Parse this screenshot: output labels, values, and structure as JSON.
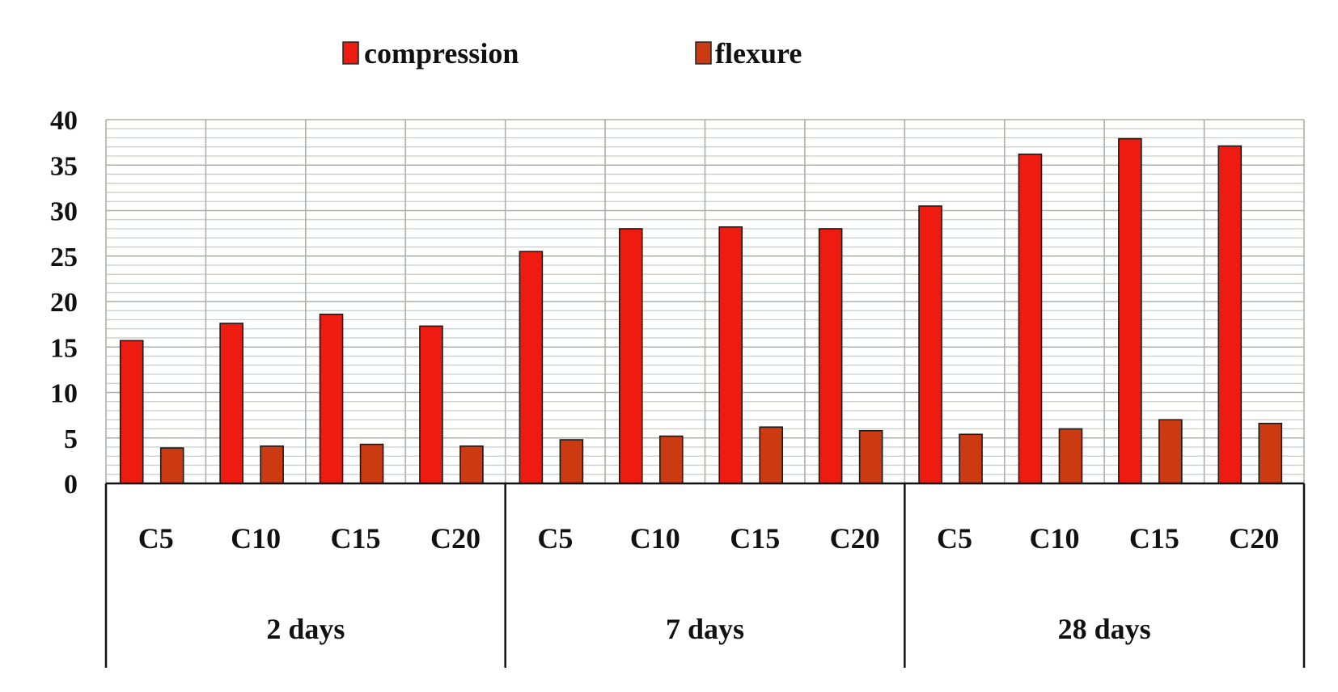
{
  "chart_data": {
    "type": "bar",
    "title": "",
    "xlabel": "",
    "ylabel": "",
    "ylim": [
      0,
      40
    ],
    "yticks": [
      0,
      5,
      10,
      15,
      20,
      25,
      30,
      35,
      40
    ],
    "grid": true,
    "legend_position": "top",
    "groups": [
      {
        "label": "2 days",
        "categories": [
          "C5",
          "C10",
          "C15",
          "C20"
        ]
      },
      {
        "label": "7 days",
        "categories": [
          "C5",
          "C10",
          "C15",
          "C20"
        ]
      },
      {
        "label": "28 days",
        "categories": [
          "C5",
          "C10",
          "C15",
          "C20"
        ]
      }
    ],
    "series": [
      {
        "name": "compression",
        "color": "#ee1c10",
        "values": [
          15.7,
          17.6,
          18.6,
          17.3,
          25.5,
          28.0,
          28.2,
          28.0,
          30.5,
          36.2,
          37.9,
          37.1
        ]
      },
      {
        "name": "flexure",
        "color": "#cc3a12",
        "values": [
          3.9,
          4.1,
          4.3,
          4.1,
          4.8,
          5.2,
          6.2,
          5.8,
          5.4,
          6.0,
          7.0,
          6.6
        ]
      }
    ]
  }
}
